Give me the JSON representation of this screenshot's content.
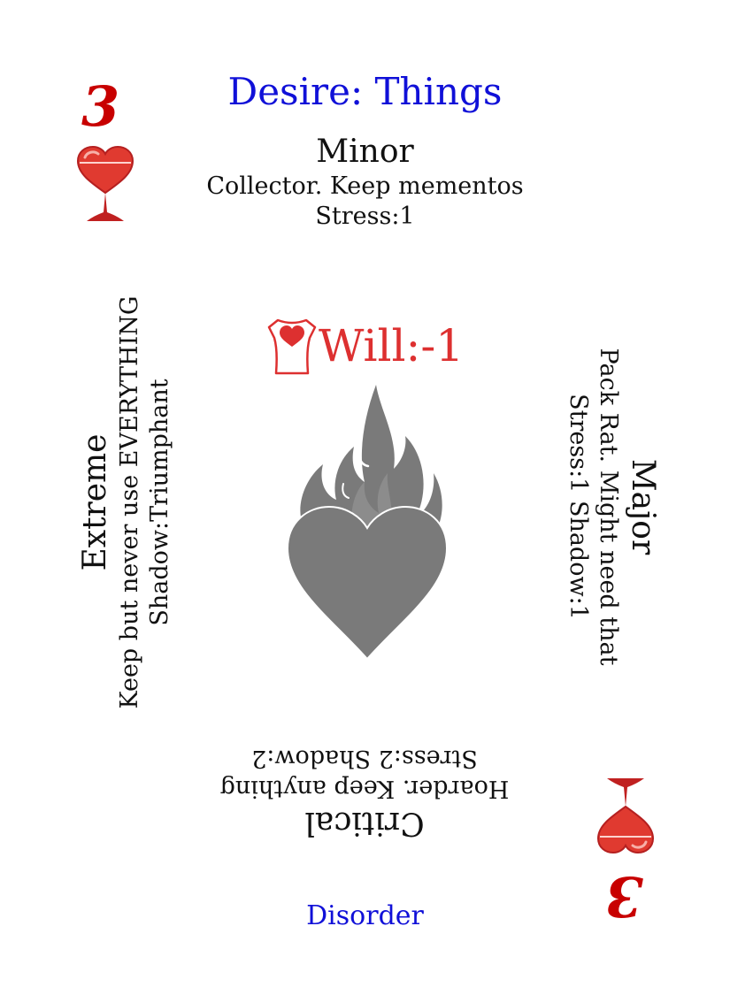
{
  "card": {
    "title": "Desire: Things",
    "rank": "3",
    "suit_icon": "heart-goblet-icon",
    "center_icon": "flaming-heart-icon",
    "will_icon": "torso-heart-icon",
    "will": "Will:-1",
    "footer": "Disorder",
    "colors": {
      "title": "#1010d8",
      "rank": "#c80000",
      "will": "#dd3030",
      "heart_gray": "#7a7a7a",
      "suit_red": "#e03a30"
    },
    "levels": {
      "minor": {
        "name": "Minor",
        "desc": "Collector. Keep mementos",
        "stat": "Stress:1"
      },
      "major": {
        "name": "Major",
        "desc": "Pack Rat. Might need that",
        "stat": "Stress:1 Shadow:1"
      },
      "critical": {
        "name": "Critical",
        "desc": "Hoarder. Keep anything",
        "stat": "Stress:2 Shadow:2"
      },
      "extreme": {
        "name": "Extreme",
        "desc": "Keep but never use EVERYTHING",
        "stat": "Shadow:Triumphant"
      }
    }
  }
}
